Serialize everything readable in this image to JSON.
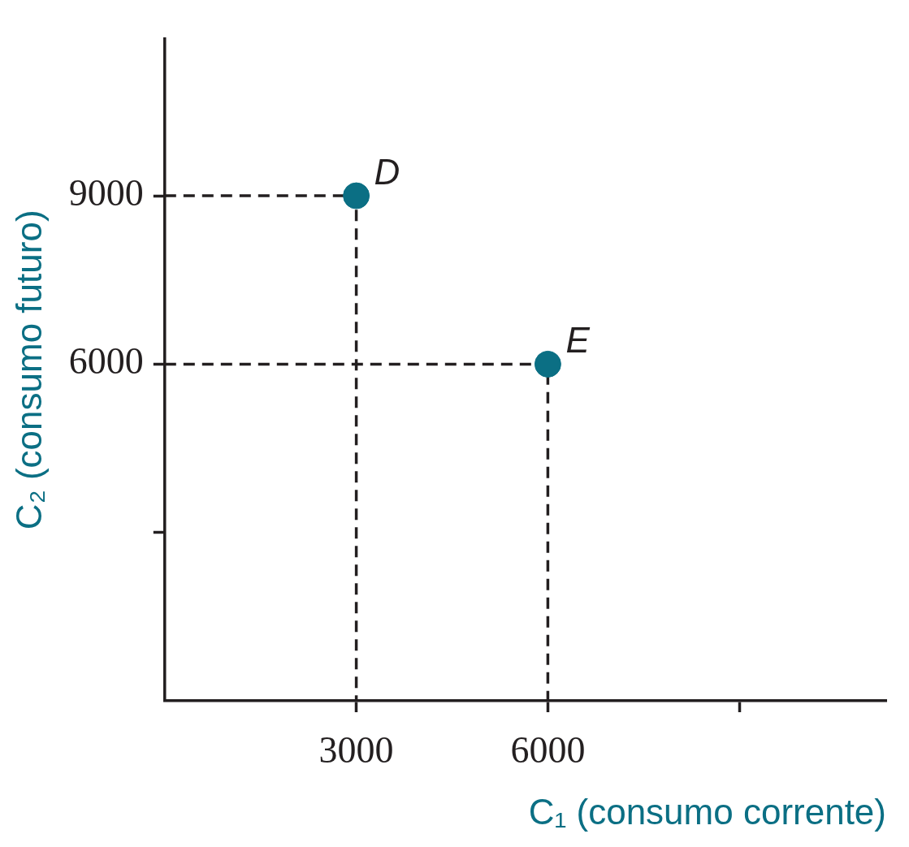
{
  "chart_data": {
    "type": "scatter",
    "xlabel": "C₁ (consumo corrente)",
    "ylabel": "C₂ (consumo futuro)",
    "xlim": [
      0,
      11300
    ],
    "ylim": [
      0,
      11800
    ],
    "xticks": [
      3000,
      6000,
      {
        "value": 9000,
        "label": null
      }
    ],
    "yticks": [
      {
        "value": 3000,
        "label": null
      },
      6000,
      9000
    ],
    "grid": false,
    "legend": false,
    "series": [
      {
        "type": "line",
        "x": [
          0,
          3000,
          3000
        ],
        "values": [
          9000,
          9000,
          0
        ],
        "color": "#231f20",
        "line_style": "dashed",
        "marker": "none"
      },
      {
        "type": "line",
        "x": [
          0,
          6000,
          6000
        ],
        "values": [
          6000,
          6000,
          0
        ],
        "color": "#231f20",
        "line_style": "dashed",
        "marker": "none"
      },
      {
        "type": "scatter",
        "x": [
          3000,
          6000
        ],
        "values": [
          9000,
          6000
        ],
        "color": "#0b6f84",
        "marker": "circle"
      }
    ],
    "annotations": [
      {
        "text": "D",
        "x": 3000,
        "y": 9000
      },
      {
        "text": "E",
        "x": 6000,
        "y": 6000
      }
    ]
  }
}
